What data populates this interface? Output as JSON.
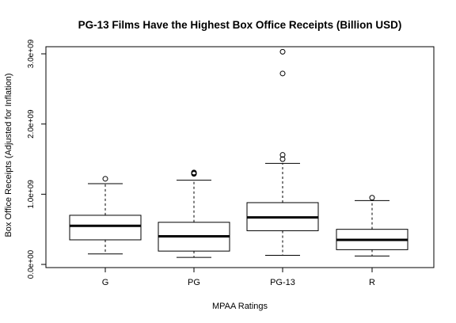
{
  "chart_data": {
    "type": "boxplot",
    "title": "PG-13 Films Have the Highest Box Office Receipts (Billion USD)",
    "xlabel": "MPAA Ratings",
    "ylabel": "Box Office Receipts (Adjusted for Inflation)",
    "ylim": [
      0,
      3150000000
    ],
    "yticks": [
      {
        "value": 0,
        "label": "0.0e+00"
      },
      {
        "value": 1000000000,
        "label": "1.0e+09"
      },
      {
        "value": 2000000000,
        "label": "2.0e+09"
      },
      {
        "value": 3000000000,
        "label": "3.0e+09"
      }
    ],
    "categories": [
      "G",
      "PG",
      "PG-13",
      "R"
    ],
    "boxes": [
      {
        "category": "G",
        "whisker_low": 150000000,
        "q1": 350000000,
        "median": 550000000,
        "q3": 700000000,
        "whisker_high": 1150000000,
        "outliers": [
          1220000000
        ]
      },
      {
        "category": "PG",
        "whisker_low": 100000000,
        "q1": 190000000,
        "median": 400000000,
        "q3": 600000000,
        "whisker_high": 1200000000,
        "outliers": [
          1290000000,
          1300000000,
          1310000000
        ]
      },
      {
        "category": "PG-13",
        "whisker_low": 130000000,
        "q1": 480000000,
        "median": 670000000,
        "q3": 880000000,
        "whisker_high": 1440000000,
        "outliers": [
          1500000000,
          1560000000,
          2720000000,
          3030000000
        ]
      },
      {
        "category": "R",
        "whisker_low": 120000000,
        "q1": 210000000,
        "median": 350000000,
        "q3": 500000000,
        "whisker_high": 910000000,
        "outliers": [
          950000000
        ]
      }
    ],
    "grid": false,
    "legend": "none"
  }
}
